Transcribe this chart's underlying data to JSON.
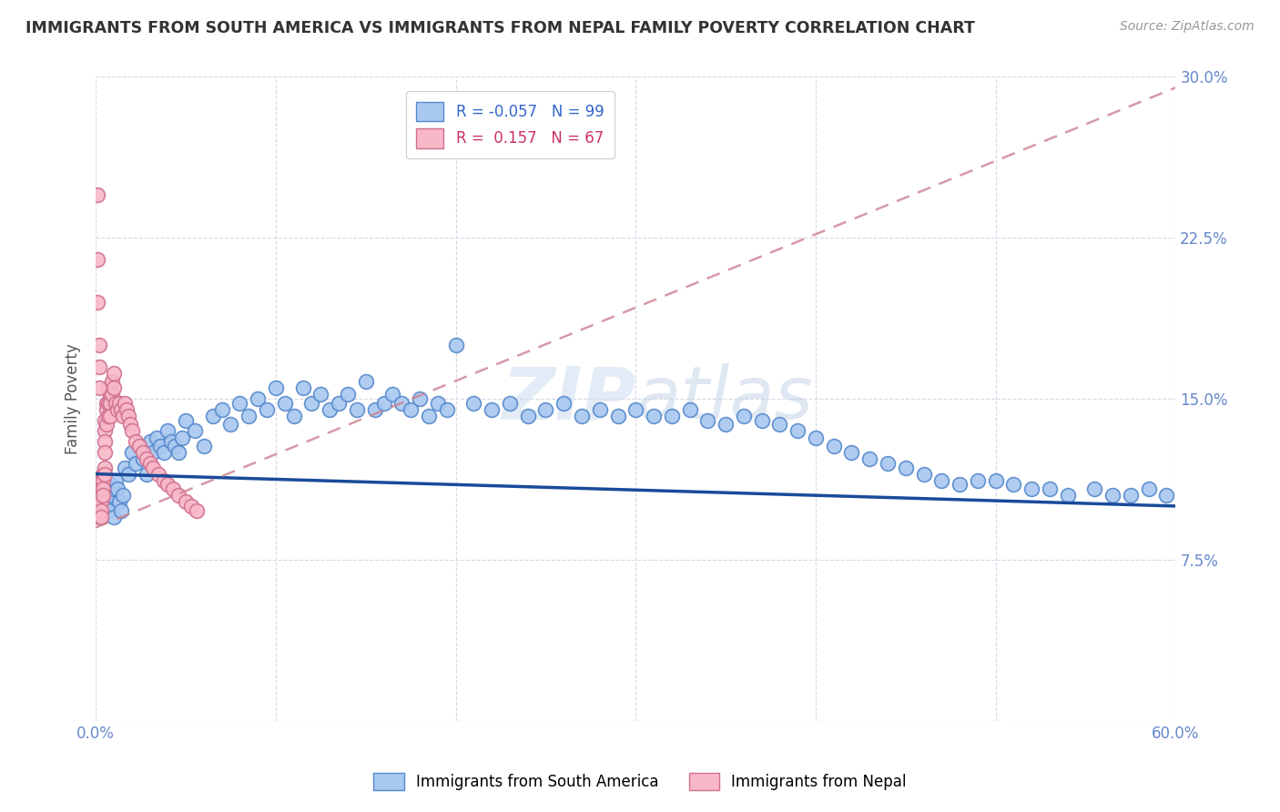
{
  "title": "IMMIGRANTS FROM SOUTH AMERICA VS IMMIGRANTS FROM NEPAL FAMILY POVERTY CORRELATION CHART",
  "source_text": "Source: ZipAtlas.com",
  "ylabel": "Family Poverty",
  "xlim": [
    0.0,
    0.6
  ],
  "ylim": [
    0.0,
    0.3
  ],
  "xtick_positions": [
    0.0,
    0.1,
    0.2,
    0.3,
    0.4,
    0.5,
    0.6
  ],
  "ytick_positions": [
    0.0,
    0.075,
    0.15,
    0.225,
    0.3
  ],
  "ytick_labels_right": [
    "",
    "7.5%",
    "15.0%",
    "22.5%",
    "30.0%"
  ],
  "watermark": "ZIPatlas",
  "legend_blue_label": "R = -0.057   N = 99",
  "legend_pink_label": "R =  0.157   N = 67",
  "legend_label_blue": "Immigrants from South America",
  "legend_label_pink": "Immigrants from Nepal",
  "color_blue_fill": "#a8c8f0",
  "color_blue_edge": "#5588cc",
  "color_pink_fill": "#f8b8c8",
  "color_pink_edge": "#d07090",
  "color_blue_line": "#1a4a9a",
  "color_pink_line": "#cc8090",
  "background_color": "#ffffff",
  "grid_color": "#d8d8e8",
  "tick_color": "#6688cc",
  "blue_scatter_x": [
    0.005,
    0.006,
    0.007,
    0.008,
    0.009,
    0.01,
    0.01,
    0.011,
    0.012,
    0.013,
    0.014,
    0.015,
    0.016,
    0.018,
    0.02,
    0.022,
    0.024,
    0.026,
    0.028,
    0.03,
    0.032,
    0.034,
    0.036,
    0.038,
    0.04,
    0.042,
    0.044,
    0.046,
    0.048,
    0.05,
    0.055,
    0.06,
    0.065,
    0.07,
    0.075,
    0.08,
    0.085,
    0.09,
    0.095,
    0.1,
    0.105,
    0.11,
    0.115,
    0.12,
    0.125,
    0.13,
    0.135,
    0.14,
    0.145,
    0.15,
    0.155,
    0.16,
    0.165,
    0.17,
    0.175,
    0.18,
    0.185,
    0.19,
    0.195,
    0.2,
    0.21,
    0.22,
    0.23,
    0.24,
    0.25,
    0.26,
    0.27,
    0.28,
    0.29,
    0.3,
    0.31,
    0.32,
    0.33,
    0.34,
    0.35,
    0.36,
    0.37,
    0.38,
    0.39,
    0.4,
    0.41,
    0.42,
    0.43,
    0.44,
    0.45,
    0.46,
    0.47,
    0.48,
    0.49,
    0.5,
    0.51,
    0.52,
    0.53,
    0.54,
    0.555,
    0.565,
    0.575,
    0.585,
    0.595
  ],
  "blue_scatter_y": [
    0.105,
    0.1,
    0.098,
    0.11,
    0.105,
    0.108,
    0.095,
    0.112,
    0.108,
    0.102,
    0.098,
    0.105,
    0.118,
    0.115,
    0.125,
    0.12,
    0.128,
    0.122,
    0.115,
    0.13,
    0.125,
    0.132,
    0.128,
    0.125,
    0.135,
    0.13,
    0.128,
    0.125,
    0.132,
    0.14,
    0.135,
    0.128,
    0.142,
    0.145,
    0.138,
    0.148,
    0.142,
    0.15,
    0.145,
    0.155,
    0.148,
    0.142,
    0.155,
    0.148,
    0.152,
    0.145,
    0.148,
    0.152,
    0.145,
    0.158,
    0.145,
    0.148,
    0.152,
    0.148,
    0.145,
    0.15,
    0.142,
    0.148,
    0.145,
    0.175,
    0.148,
    0.145,
    0.148,
    0.142,
    0.145,
    0.148,
    0.142,
    0.145,
    0.142,
    0.145,
    0.142,
    0.142,
    0.145,
    0.14,
    0.138,
    0.142,
    0.14,
    0.138,
    0.135,
    0.132,
    0.128,
    0.125,
    0.122,
    0.12,
    0.118,
    0.115,
    0.112,
    0.11,
    0.112,
    0.112,
    0.11,
    0.108,
    0.108,
    0.105,
    0.108,
    0.105,
    0.105,
    0.108,
    0.105
  ],
  "pink_scatter_x": [
    0.001,
    0.001,
    0.001,
    0.002,
    0.002,
    0.002,
    0.002,
    0.002,
    0.003,
    0.003,
    0.003,
    0.003,
    0.003,
    0.004,
    0.004,
    0.004,
    0.004,
    0.005,
    0.005,
    0.005,
    0.005,
    0.005,
    0.005,
    0.006,
    0.006,
    0.006,
    0.007,
    0.007,
    0.007,
    0.008,
    0.008,
    0.008,
    0.009,
    0.009,
    0.01,
    0.01,
    0.011,
    0.012,
    0.013,
    0.014,
    0.015,
    0.016,
    0.017,
    0.018,
    0.019,
    0.02,
    0.022,
    0.024,
    0.026,
    0.028,
    0.03,
    0.032,
    0.035,
    0.038,
    0.04,
    0.043,
    0.046,
    0.05,
    0.053,
    0.056,
    0.001,
    0.001,
    0.001,
    0.002,
    0.002,
    0.002,
    0.003
  ],
  "pink_scatter_y": [
    0.11,
    0.105,
    0.1,
    0.108,
    0.105,
    0.102,
    0.098,
    0.095,
    0.112,
    0.108,
    0.105,
    0.102,
    0.098,
    0.115,
    0.112,
    0.108,
    0.105,
    0.14,
    0.135,
    0.13,
    0.125,
    0.118,
    0.115,
    0.148,
    0.145,
    0.138,
    0.155,
    0.148,
    0.142,
    0.152,
    0.148,
    0.142,
    0.158,
    0.152,
    0.162,
    0.155,
    0.148,
    0.145,
    0.148,
    0.145,
    0.142,
    0.148,
    0.145,
    0.142,
    0.138,
    0.135,
    0.13,
    0.128,
    0.125,
    0.122,
    0.12,
    0.118,
    0.115,
    0.112,
    0.11,
    0.108,
    0.105,
    0.102,
    0.1,
    0.098,
    0.245,
    0.215,
    0.195,
    0.175,
    0.165,
    0.155,
    0.095
  ],
  "blue_line_x": [
    0.0,
    0.6
  ],
  "blue_line_y": [
    0.115,
    0.1
  ],
  "pink_line_x": [
    0.0,
    0.6
  ],
  "pink_line_y": [
    0.09,
    0.295
  ]
}
